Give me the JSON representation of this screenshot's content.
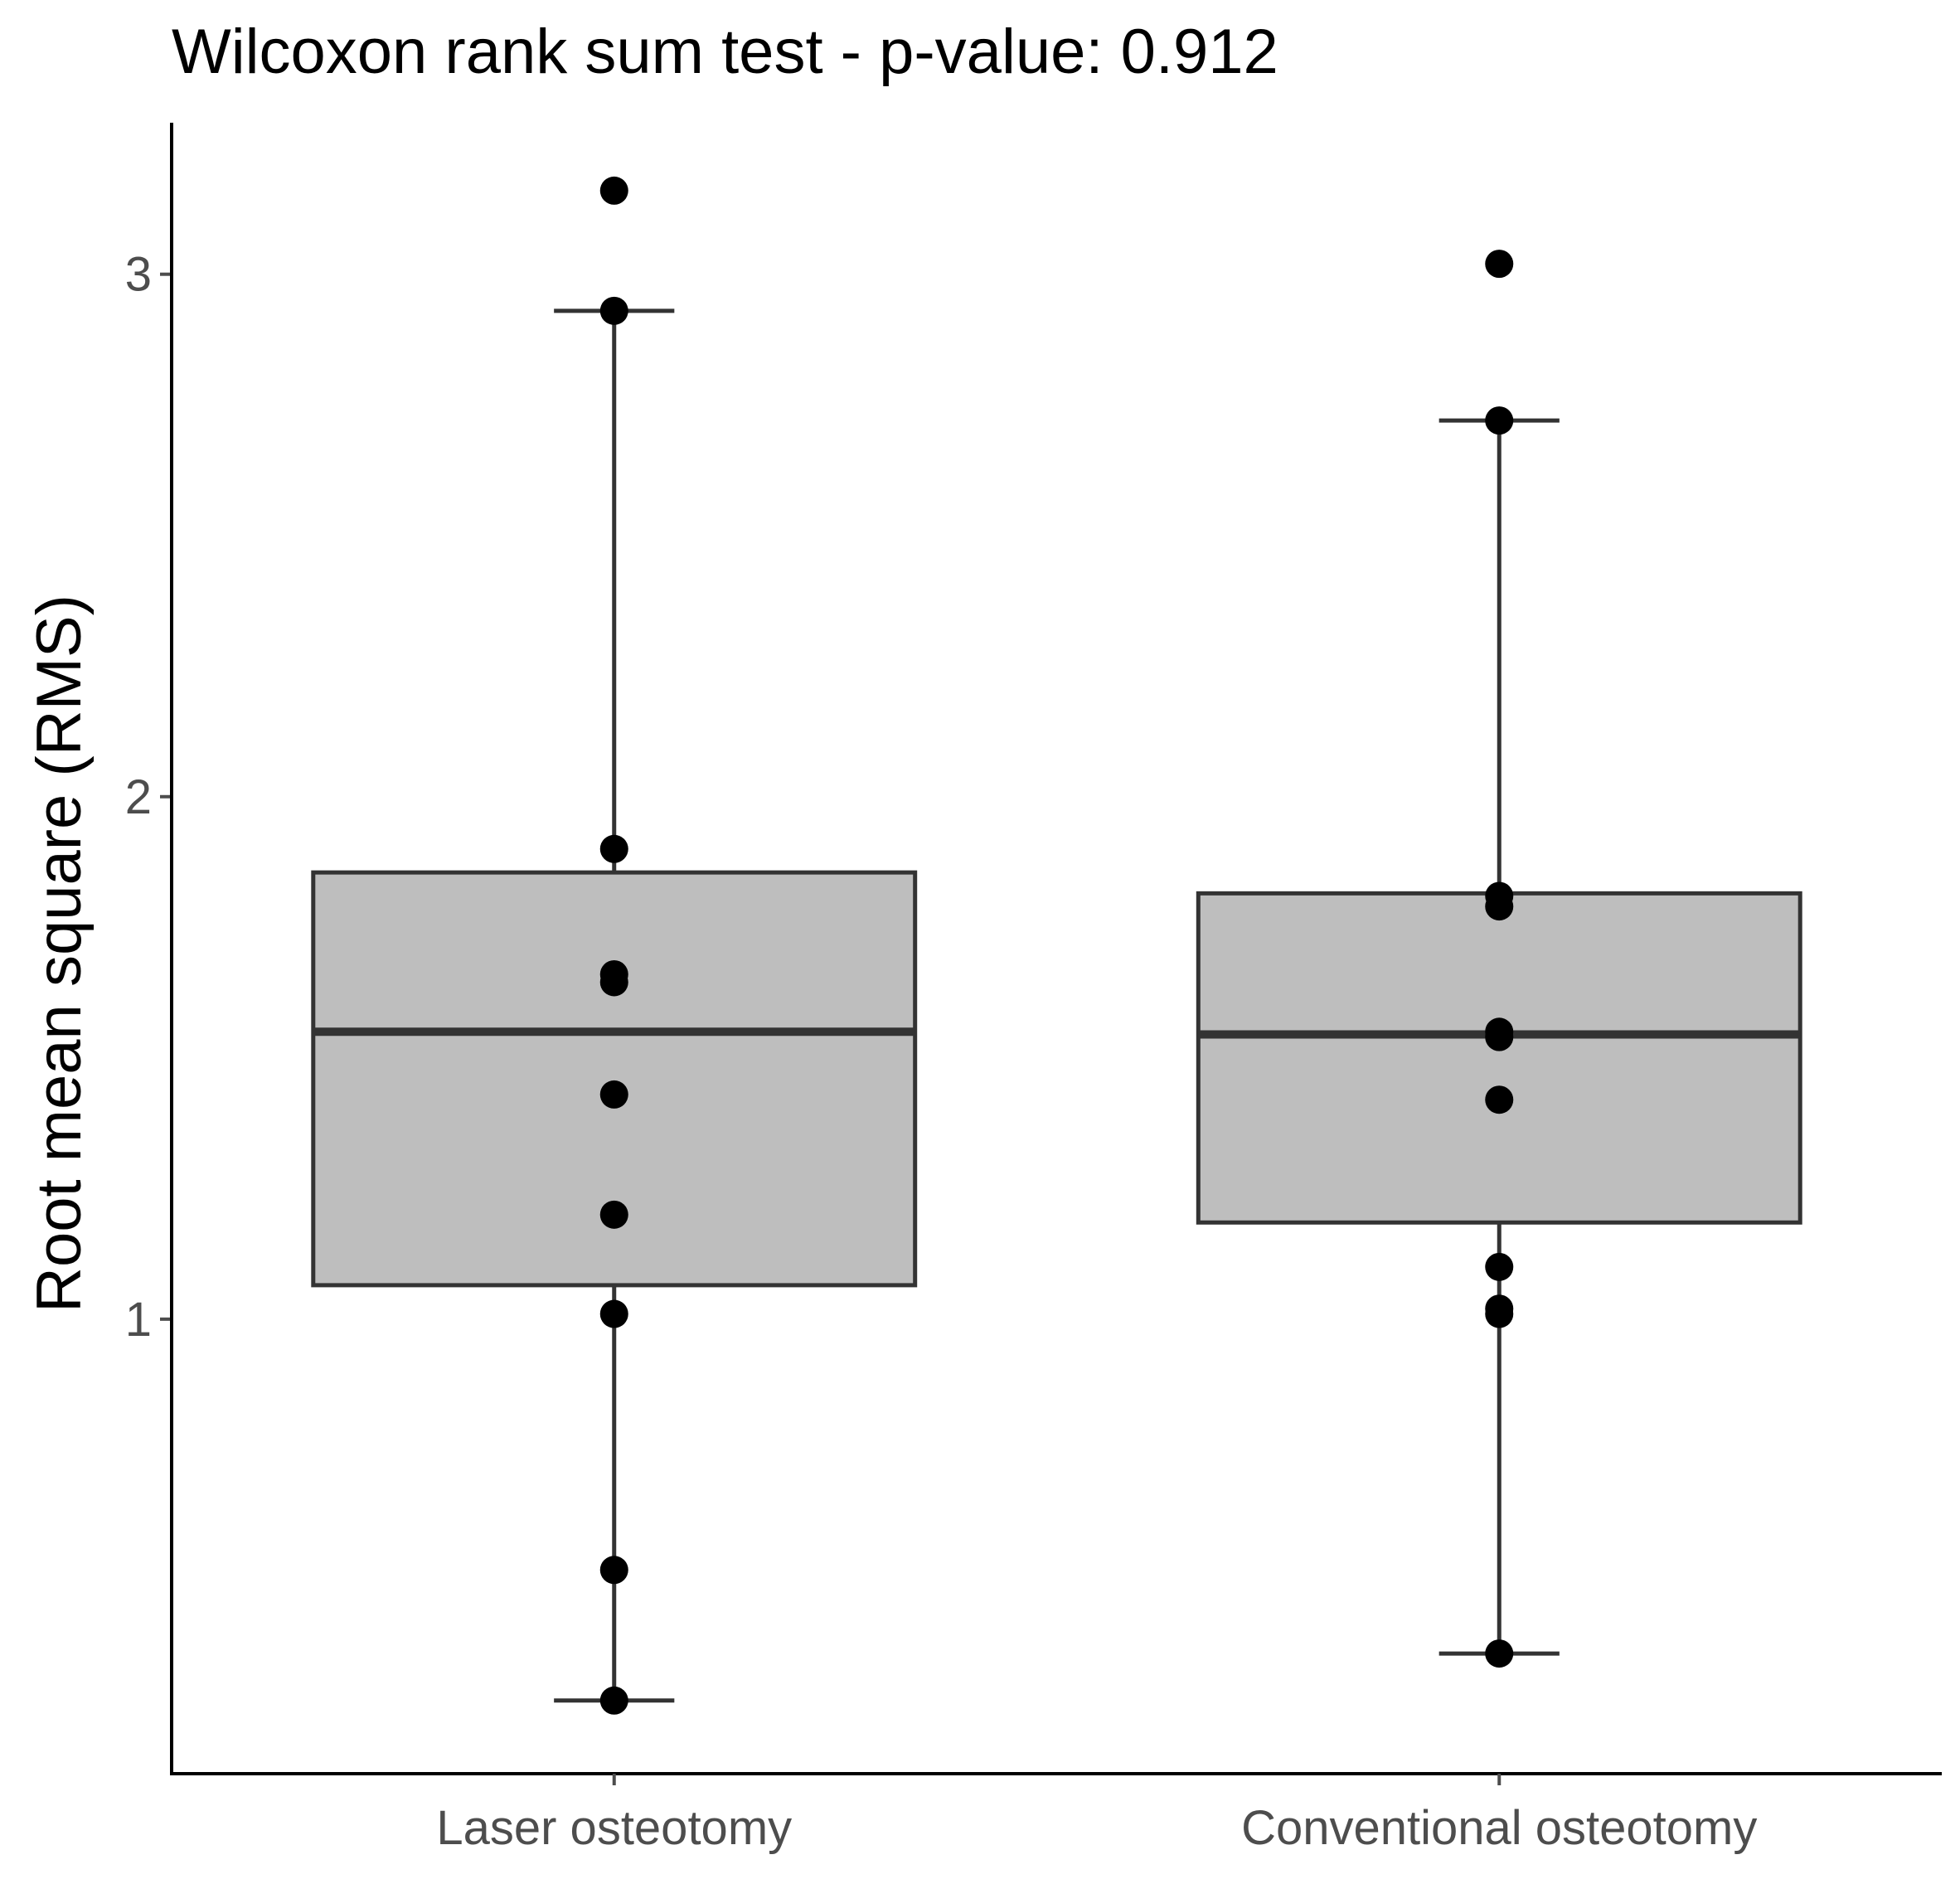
{
  "chart_data": {
    "type": "boxplot",
    "title": "Wilcoxon rank sum test - p-value: 0.912",
    "xlabel": "",
    "ylabel": "Root mean square (RMS)",
    "ylim": [
      0.13,
      3.29
    ],
    "yticks": [
      1,
      2,
      3
    ],
    "categories": [
      "Laser osteotomy",
      "Conventional osteotomy"
    ],
    "boxes": [
      {
        "name": "Laser osteotomy",
        "whisker_low": 0.27,
        "q1": 1.065,
        "median": 1.55,
        "q3": 1.855,
        "whisker_high": 2.93,
        "points": [
          3.16,
          2.93,
          1.9,
          1.66,
          1.645,
          1.43,
          1.2,
          1.01,
          0.52,
          0.27
        ]
      },
      {
        "name": "Conventional osteotomy",
        "whisker_low": 0.36,
        "q1": 1.185,
        "median": 1.545,
        "q3": 1.815,
        "whisker_high": 2.72,
        "points": [
          3.02,
          2.72,
          1.81,
          1.79,
          1.55,
          1.54,
          1.42,
          1.1,
          1.02,
          1.01,
          0.36
        ]
      }
    ],
    "colors": {
      "box_fill": "#bebebe",
      "box_stroke": "#333333",
      "point": "#000000",
      "axis": "#000000",
      "tick_text": "#4d4d4d",
      "text": "#000000"
    }
  }
}
